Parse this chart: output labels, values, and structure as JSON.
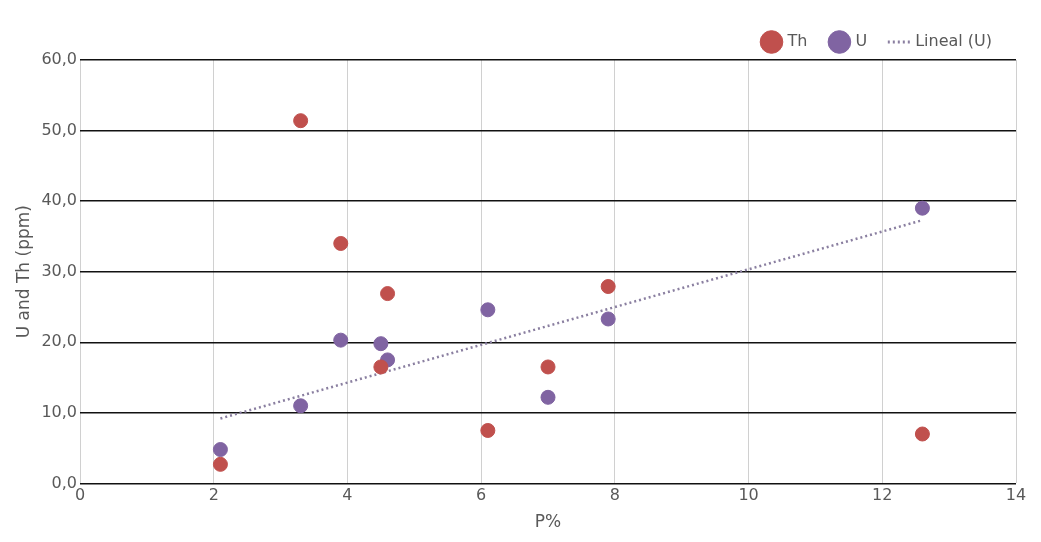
{
  "chart_data": {
    "type": "scatter",
    "xlabel": "P%",
    "ylabel": "U and Th (ppm)",
    "x": [
      2.1,
      3.3,
      3.9,
      4.5,
      4.6,
      6.1,
      7.0,
      7.9,
      12.6
    ],
    "series": [
      {
        "name": "Th",
        "color": "#c0504d",
        "values": [
          2.7,
          51.4,
          34.0,
          16.5,
          26.9,
          7.5,
          16.5,
          27.9,
          7.0
        ]
      },
      {
        "name": "U",
        "color": "#8064a2",
        "values": [
          4.8,
          11.0,
          20.3,
          19.8,
          17.5,
          24.6,
          12.2,
          23.3,
          39.0
        ]
      },
      {
        "name": "Lineal (U)",
        "type": "line",
        "color": "#8a7fa0",
        "x": [
          2.1,
          12.6
        ],
        "values": [
          9.2,
          37.3
        ],
        "line_style": "dotted",
        "marker": "none"
      }
    ],
    "marker": "circle",
    "xlim": [
      0,
      14
    ],
    "xticks": [
      0,
      2,
      4,
      6,
      8,
      10,
      12,
      14
    ],
    "ylim": [
      0,
      60
    ],
    "yticks": [
      {
        "value": 0,
        "label": "0,0"
      },
      {
        "value": 10,
        "label": "10,0"
      },
      {
        "value": 20,
        "label": "20,0"
      },
      {
        "value": 30,
        "label": "30,0"
      },
      {
        "value": 40,
        "label": "40,0"
      },
      {
        "value": 50,
        "label": "50,0"
      },
      {
        "value": 60,
        "label": "60,0"
      }
    ],
    "grid": true,
    "legend": "top right"
  }
}
